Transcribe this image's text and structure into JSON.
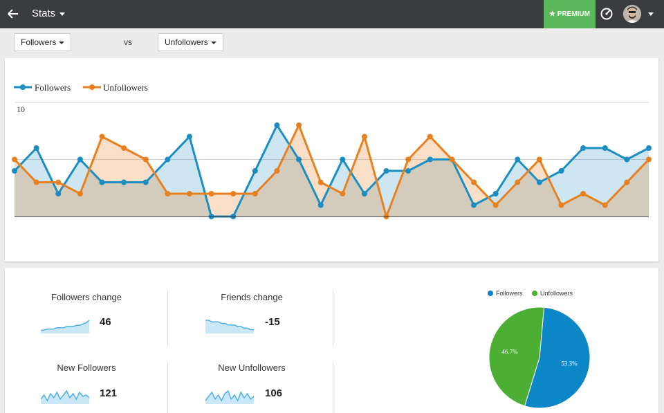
{
  "header": {
    "title": "Stats",
    "premium_label": "★ PREMIUM"
  },
  "controls": {
    "left_metric": "Followers",
    "vs_label": "vs",
    "right_metric": "Unfollowers"
  },
  "colors": {
    "followers": "#1a8ec2",
    "unfollowers": "#e8801f",
    "pie_followers": "#0b86c6",
    "pie_unfollowers": "#4cae33",
    "premium": "#5cb85c",
    "topbar": "#3a3c40"
  },
  "chart_data": [
    {
      "type": "area",
      "x": [
        1,
        2,
        3,
        4,
        5,
        6,
        7,
        8,
        9,
        10,
        11,
        12,
        13,
        14,
        15,
        16,
        17,
        18,
        19,
        20,
        21,
        22,
        23,
        24,
        25,
        26,
        27,
        28,
        29,
        30,
        31,
        32,
        33,
        34,
        35,
        36,
        37,
        38,
        39
      ],
      "series": [
        {
          "name": "Followers",
          "values": [
            4,
            6,
            2,
            5,
            3,
            3,
            3,
            5,
            7,
            0,
            0,
            4,
            8,
            5,
            1,
            5,
            2,
            4,
            4,
            5,
            5,
            1,
            2,
            5,
            3,
            4,
            6,
            6,
            5,
            6,
            null,
            null,
            null,
            null,
            null,
            null,
            null,
            null,
            null
          ]
        },
        {
          "name": "Unfollowers",
          "values": [
            5,
            3,
            3,
            2,
            7,
            6,
            5,
            2,
            2,
            2,
            2,
            2,
            4,
            8,
            3,
            2,
            7,
            0,
            5,
            7,
            5,
            3,
            1,
            3,
            5,
            1,
            2,
            1,
            3,
            5,
            null,
            null,
            null,
            null,
            null,
            null,
            null,
            null,
            null
          ]
        }
      ],
      "y_tick_labels": [
        "10"
      ],
      "ylim": [
        0,
        10
      ],
      "legend_position": "top-left",
      "grid": true
    },
    {
      "type": "pie",
      "labels": [
        "Followers",
        "Unfollowers"
      ],
      "values": [
        53.3,
        46.7
      ],
      "value_labels": [
        "53.3%",
        "46.7%"
      ],
      "legend_position": "top"
    }
  ],
  "stats": [
    {
      "label": "Followers change",
      "value": "46",
      "spark": [
        2,
        2,
        3,
        3,
        3,
        4,
        4,
        4,
        5,
        5,
        5,
        6,
        6,
        7,
        8,
        10
      ]
    },
    {
      "label": "Friends change",
      "value": "-15",
      "spark": [
        8,
        8,
        7,
        7,
        7,
        6,
        6,
        5,
        5,
        5,
        4,
        4,
        3,
        3,
        2,
        2
      ]
    },
    {
      "label": "New Followers",
      "value": "121",
      "spark": [
        3,
        6,
        2,
        7,
        4,
        8,
        3,
        6,
        9,
        4,
        7,
        3,
        8,
        5,
        6,
        4
      ]
    },
    {
      "label": "New Unfollowers",
      "value": "106",
      "spark": [
        2,
        5,
        8,
        3,
        6,
        2,
        7,
        9,
        3,
        6,
        2,
        8,
        4,
        7,
        3,
        5
      ]
    }
  ]
}
